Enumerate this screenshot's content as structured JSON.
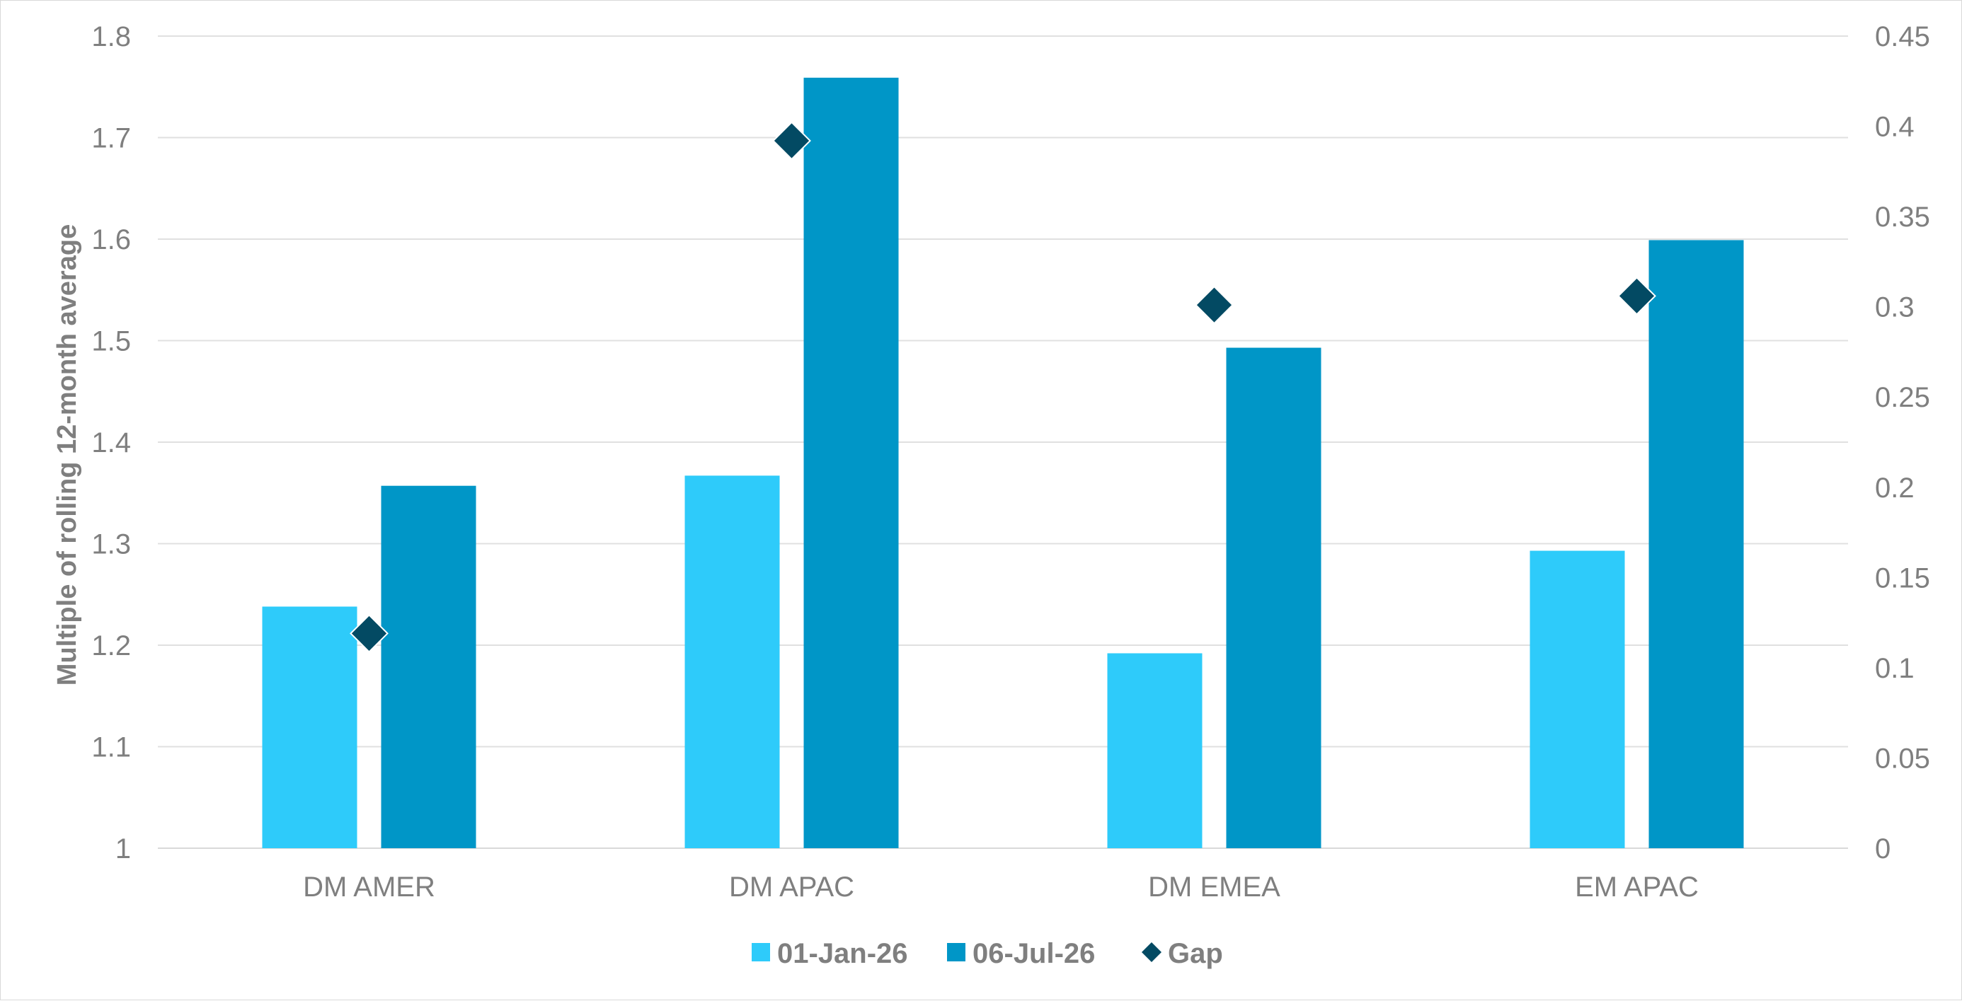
{
  "chart_data": {
    "type": "bar",
    "title": "",
    "categories": [
      "DM AMER",
      "DM APAC",
      "DM EMEA",
      "EM APAC"
    ],
    "series": [
      {
        "name": "01-Jan-26",
        "type": "bar",
        "axis": "left",
        "color": "#2ecbfa",
        "values": [
          1.238,
          1.367,
          1.192,
          1.293
        ]
      },
      {
        "name": "06-Jul-26",
        "type": "bar",
        "axis": "left",
        "color": "#0096c7",
        "values": [
          1.357,
          1.759,
          1.493,
          1.599
        ]
      },
      {
        "name": "Gap",
        "type": "scatter",
        "marker": "diamond",
        "axis": "right",
        "color": "#034a63",
        "values": [
          0.119,
          0.392,
          0.301,
          0.306
        ]
      }
    ],
    "ylabel": "Multiple of rolling 12-month average",
    "ylim": [
      1,
      1.8
    ],
    "y_ticks": [
      "1",
      "1.1",
      "1.2",
      "1.3",
      "1.4",
      "1.5",
      "1.6",
      "1.7",
      "1.8"
    ],
    "y2lim": [
      0,
      0.45
    ],
    "y2_ticks": [
      "0",
      "0.05",
      "0.1",
      "0.15",
      "0.2",
      "0.25",
      "0.3",
      "0.35",
      "0.4",
      "0.45"
    ],
    "grid": true,
    "legend_position": "bottom"
  }
}
